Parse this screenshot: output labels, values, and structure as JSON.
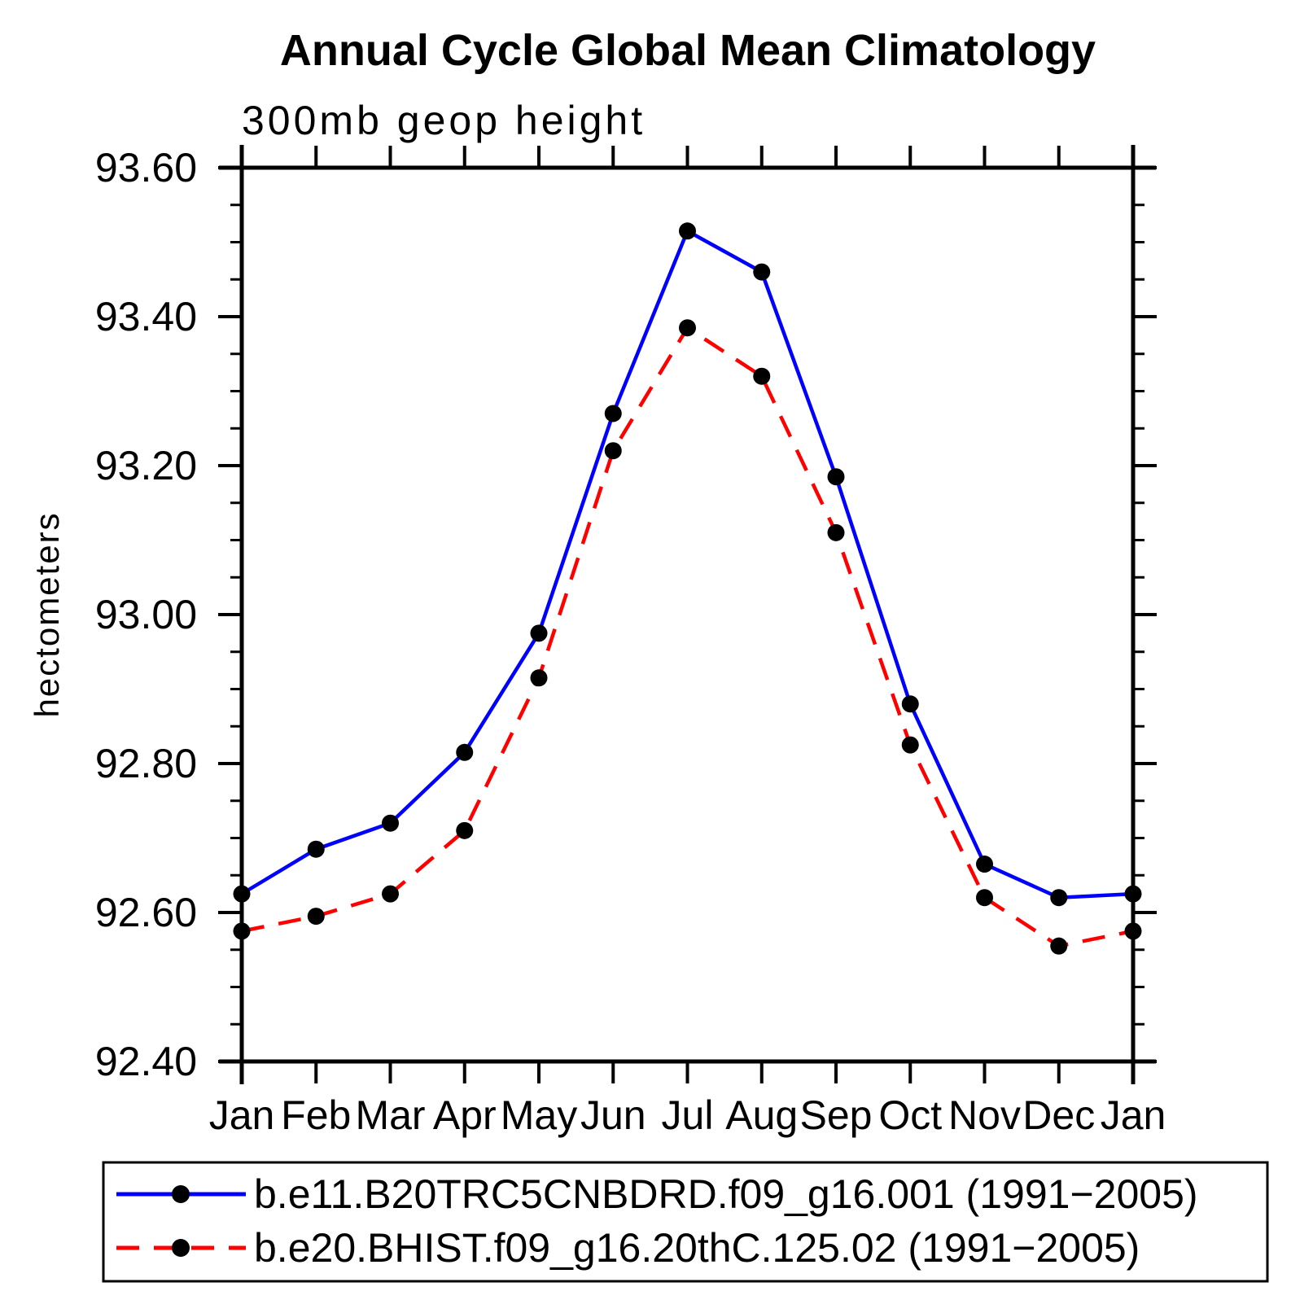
{
  "title": "Annual Cycle Global Mean Climatology",
  "subtitle": "300mb geop height",
  "y_axis_label": "hectometers",
  "colors": {
    "background": "#ffffff",
    "axis": "#000000",
    "marker": "#000000",
    "series1": "#0000ff",
    "series2": "#ff0000"
  },
  "chart_data": {
    "type": "line",
    "title": "Annual Cycle Global Mean Climatology",
    "subtitle": "300mb geop height",
    "xlabel": "",
    "ylabel": "hectometers",
    "categories": [
      "Jan",
      "Feb",
      "Mar",
      "Apr",
      "May",
      "Jun",
      "Jul",
      "Aug",
      "Sep",
      "Oct",
      "Nov",
      "Dec",
      "Jan"
    ],
    "series": [
      {
        "name": "b.e11.B20TRC5CNBDRD.f09_g16.001 (1991−2005)",
        "color": "#0000ff",
        "line_style": "solid",
        "marker": "filled-circle",
        "marker_color": "#000000",
        "values": [
          92.625,
          92.685,
          92.72,
          92.815,
          92.975,
          93.27,
          93.515,
          93.46,
          93.185,
          92.88,
          92.665,
          92.62,
          92.625
        ]
      },
      {
        "name": "b.e20.BHIST.f09_g16.20thC.125.02 (1991−2005)",
        "color": "#ff0000",
        "line_style": "dashed",
        "marker": "filled-circle",
        "marker_color": "#000000",
        "values": [
          92.575,
          92.595,
          92.625,
          92.71,
          92.915,
          93.22,
          93.385,
          93.32,
          93.11,
          92.825,
          92.62,
          92.555,
          92.575
        ]
      }
    ],
    "ylim": [
      92.4,
      93.6
    ],
    "ytick_major_step": 0.2,
    "ytick_minor_step": 0.05,
    "ytick_labels": [
      "92.40",
      "92.60",
      "92.80",
      "93.00",
      "93.20",
      "93.40",
      "93.60"
    ],
    "grid": false,
    "legend_position": "bottom-left-box"
  }
}
